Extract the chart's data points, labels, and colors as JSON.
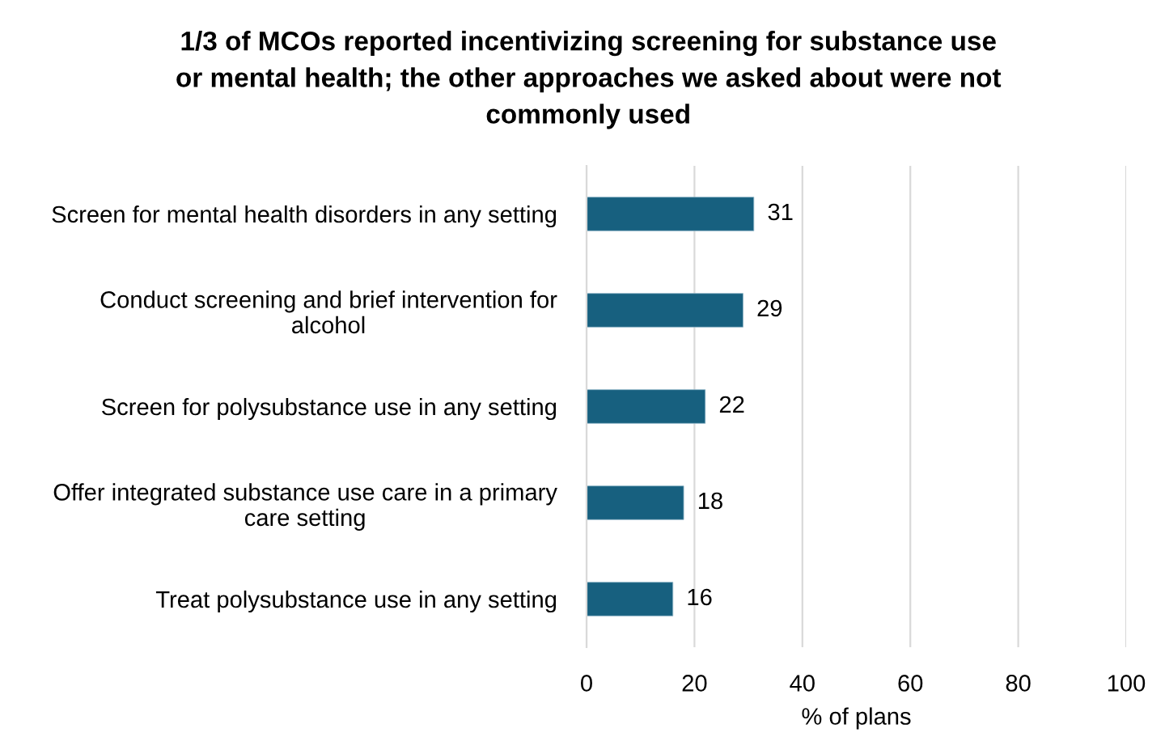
{
  "chart_data": {
    "type": "bar",
    "orientation": "horizontal",
    "title": "1/3 of MCOs reported incentivizing screening for substance use\nor mental health; the other approaches we asked about were not\ncommonly used",
    "xlabel": "% of plans",
    "categories": [
      "Screen for mental health disorders in any setting",
      "Conduct screening and brief intervention for\nalcohol",
      "Screen for polysubstance use in any setting",
      "Offer integrated substance use care in a primary\ncare setting",
      "Treat polysubstance use in any setting"
    ],
    "values": [
      31,
      29,
      22,
      18,
      16
    ],
    "color": "#17607f",
    "xlim": [
      0,
      100
    ],
    "xticks": [
      0,
      20,
      40,
      60,
      80,
      100
    ],
    "grid": "x",
    "data_labels": true
  }
}
